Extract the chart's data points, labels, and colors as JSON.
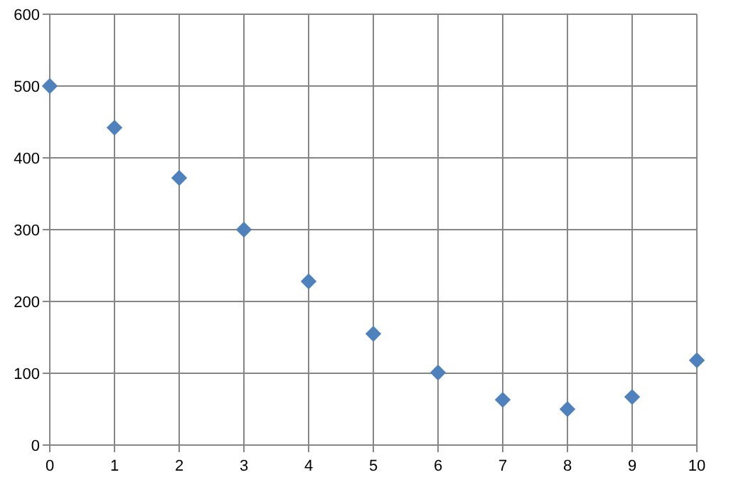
{
  "chart_data": {
    "type": "scatter",
    "x": [
      0,
      1,
      2,
      3,
      4,
      5,
      6,
      7,
      8,
      9,
      10
    ],
    "series": [
      {
        "color": "#4f81bd",
        "values": [
          500,
          442,
          372,
          300,
          228,
          155,
          101,
          63,
          50,
          67,
          118
        ]
      }
    ],
    "xlim": [
      0,
      10
    ],
    "xticks": [
      0,
      1,
      2,
      3,
      4,
      5,
      6,
      7,
      8,
      9,
      10
    ],
    "ylim": [
      0,
      600
    ],
    "yticks": [
      0,
      100,
      200,
      300,
      400,
      500,
      600
    ],
    "grid": true,
    "marker": "diamond"
  }
}
